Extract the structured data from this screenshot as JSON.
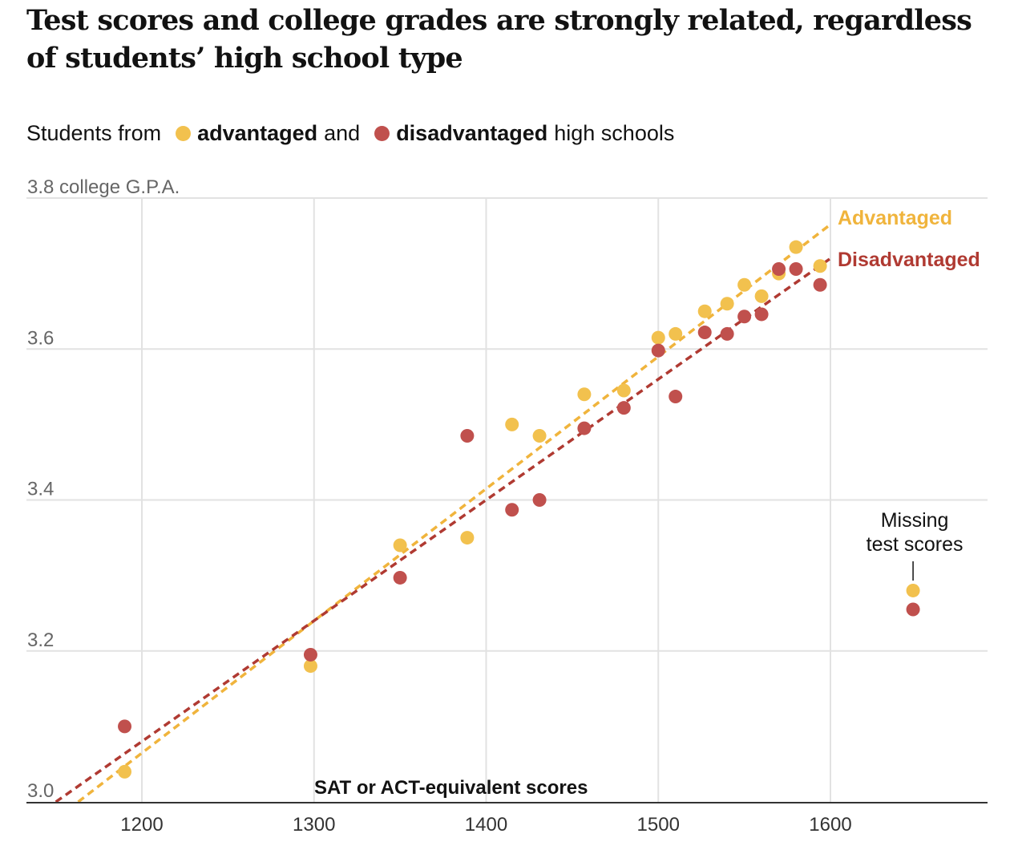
{
  "title": "Test scores and college grades are strongly related, regardless of students’ high school type",
  "legend": {
    "prefix": "Students from",
    "adv_label": "advantaged",
    "joiner": "and",
    "dis_label": "disadvantaged",
    "suffix": "high schools"
  },
  "colors": {
    "advantaged": "#f2c14e",
    "disadvantaged": "#c0504d",
    "adv_line": "#f0b43c",
    "dis_line": "#b03a32",
    "grid": "#e2e2e2"
  },
  "chart_data": {
    "type": "scatter",
    "title": "Test scores and college grades are strongly related, regardless of students’ high school type",
    "xlabel": "SAT or ACT-equivalent scores",
    "ylabel": "college G.P.A.",
    "xlim": [
      1133,
      1690
    ],
    "ylim": [
      3.0,
      3.8
    ],
    "x_ticks": [
      1200,
      1300,
      1400,
      1500,
      1600
    ],
    "y_ticks": [
      3.0,
      3.2,
      3.4,
      3.6,
      3.8
    ],
    "y_tick_labels": [
      "3.0",
      "3.2",
      "3.4",
      "3.6",
      "3.8 college G.P.A."
    ],
    "grid": true,
    "series": [
      {
        "name": "Advantaged",
        "points": [
          [
            1190,
            3.04
          ],
          [
            1298,
            3.18
          ],
          [
            1350,
            3.34
          ],
          [
            1389,
            3.35
          ],
          [
            1415,
            3.5
          ],
          [
            1431,
            3.485
          ],
          [
            1457,
            3.54
          ],
          [
            1480,
            3.545
          ],
          [
            1500,
            3.615
          ],
          [
            1510,
            3.62
          ],
          [
            1527,
            3.65
          ],
          [
            1540,
            3.66
          ],
          [
            1550,
            3.685
          ],
          [
            1560,
            3.67
          ],
          [
            1570,
            3.7
          ],
          [
            1580,
            3.735
          ],
          [
            1594,
            3.71
          ]
        ],
        "trend": [
          [
            1163,
            3.0
          ],
          [
            1600,
            3.765
          ]
        ]
      },
      {
        "name": "Disadvantaged",
        "points": [
          [
            1190,
            3.1
          ],
          [
            1298,
            3.195
          ],
          [
            1350,
            3.297
          ],
          [
            1389,
            3.485
          ],
          [
            1415,
            3.387
          ],
          [
            1431,
            3.4
          ],
          [
            1457,
            3.495
          ],
          [
            1480,
            3.522
          ],
          [
            1500,
            3.598
          ],
          [
            1510,
            3.537
          ],
          [
            1527,
            3.622
          ],
          [
            1540,
            3.62
          ],
          [
            1550,
            3.643
          ],
          [
            1560,
            3.646
          ],
          [
            1570,
            3.706
          ],
          [
            1580,
            3.706
          ],
          [
            1594,
            3.685
          ]
        ],
        "trend": [
          [
            1150,
            3.0
          ],
          [
            1600,
            3.72
          ]
        ]
      }
    ],
    "missing_scores": {
      "x": 1648,
      "advantaged": 3.28,
      "disadvantaged": 3.255,
      "annotation": [
        "Missing",
        "test scores"
      ]
    },
    "line_labels": [
      "Advantaged",
      "Disadvantaged"
    ]
  }
}
